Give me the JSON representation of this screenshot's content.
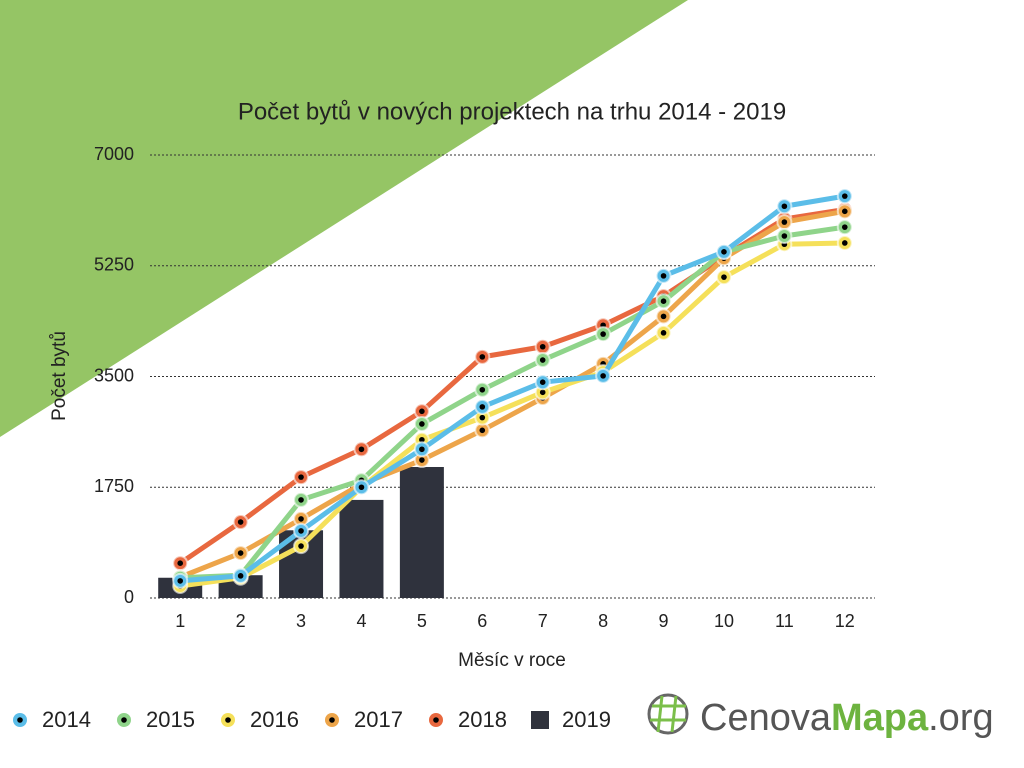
{
  "chart_data": {
    "type": "line",
    "title": "Počet bytů v nových projektech na trhu 2014 - 2019",
    "x_label": "Měsíc v roce",
    "y_label": "Počet bytů",
    "categories": [
      "1",
      "2",
      "3",
      "4",
      "5",
      "6",
      "7",
      "8",
      "9",
      "10",
      "11",
      "12"
    ],
    "ylim": [
      0,
      7000
    ],
    "yticks": [
      0,
      1750,
      3500,
      5250,
      7000
    ],
    "grid": true,
    "legend": "bottom",
    "series": [
      {
        "name": "2014",
        "type": "line",
        "color": "#5bbde8",
        "values": [
          270,
          350,
          1060,
          1750,
          2350,
          3020,
          3410,
          3510,
          5090,
          5470,
          6190,
          6350
        ]
      },
      {
        "name": "2015",
        "type": "line",
        "color": "#8fd48a",
        "values": [
          320,
          360,
          1550,
          1860,
          2750,
          3290,
          3760,
          4170,
          4690,
          5470,
          5720,
          5860
        ]
      },
      {
        "name": "2016",
        "type": "line",
        "color": "#f5e05a",
        "values": [
          190,
          320,
          820,
          1750,
          2500,
          2850,
          3250,
          3570,
          4190,
          5070,
          5590,
          5610
        ]
      },
      {
        "name": "2017",
        "type": "line",
        "color": "#eda54a",
        "values": [
          330,
          710,
          1250,
          1800,
          2180,
          2650,
          3160,
          3700,
          4450,
          5370,
          5940,
          6110
        ]
      },
      {
        "name": "2018",
        "type": "line",
        "color": "#e8683f",
        "values": [
          550,
          1200,
          1910,
          2350,
          2950,
          3810,
          3970,
          4310,
          4770,
          5400,
          5990,
          6140
        ]
      },
      {
        "name": "2019",
        "type": "bar",
        "color": "#2f323d",
        "values": [
          320,
          360,
          1070,
          1550,
          2070,
          null,
          null,
          null,
          null,
          null,
          null,
          null
        ]
      }
    ]
  },
  "logo": {
    "part1": "Cenova",
    "part2": "Mapa",
    "part3": ".org"
  }
}
